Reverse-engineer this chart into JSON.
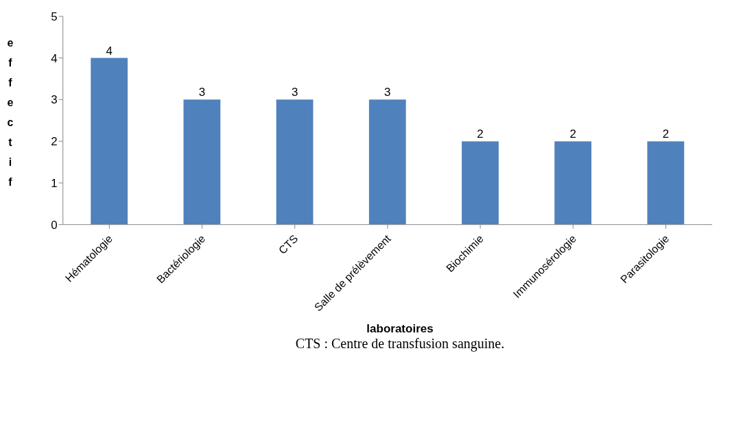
{
  "chart_data": {
    "type": "bar",
    "xlabel": "laboratoires",
    "ylabel": "effectif",
    "categories": [
      "Hématologie",
      "Bactériologie",
      "CTS",
      "Salle de prélèvement",
      "Biochimie",
      "Immunosérologie",
      "Parasitologie"
    ],
    "values": [
      4,
      3,
      3,
      3,
      2,
      2,
      2
    ],
    "color": "#4f81bd",
    "ylim": [
      0,
      5
    ],
    "yticks": [
      0,
      1,
      2,
      3,
      4,
      5
    ],
    "grid": false,
    "data_labels": true,
    "annotations": [
      "CTS : Centre de transfusion sanguine."
    ]
  }
}
